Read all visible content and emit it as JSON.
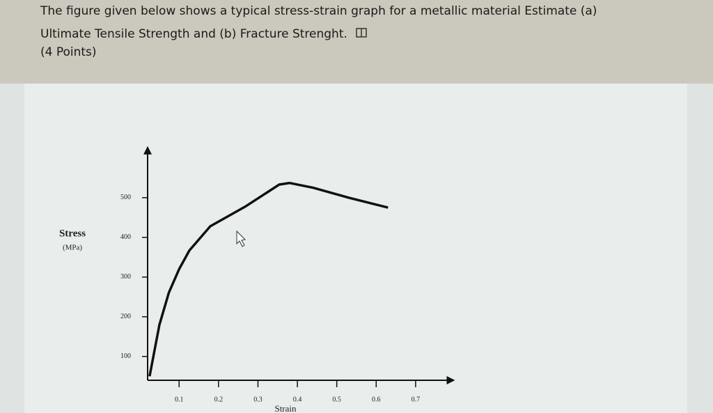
{
  "question": {
    "lines": [
      "The figure given below shows a typical stress-strain graph for a metallic material  Estimate (a)",
      "Ultimate Tensile Strength and (b) Fracture Strenght.",
      "(4 Points)"
    ]
  },
  "chart_data": {
    "type": "line",
    "ylabel": "Stress",
    "yunit": "(MPa)",
    "xlabel": "Strain",
    "x": [
      0.025,
      0.05,
      0.074,
      0.1,
      0.126,
      0.179,
      0.267,
      0.354,
      0.38,
      0.44,
      0.53,
      0.63
    ],
    "series": [
      {
        "color": "#111111",
        "values": [
          50,
          180,
          261,
          320,
          367,
          428,
          477,
          533,
          537,
          525,
          500,
          475
        ]
      }
    ],
    "xlim": [
      0.02,
      0.8
    ],
    "ylim": [
      40,
      630
    ],
    "xticks": [
      0.1,
      0.2,
      0.3,
      0.4,
      0.5,
      0.6,
      0.7
    ],
    "yticks": [
      100,
      200,
      300,
      400,
      500
    ]
  }
}
